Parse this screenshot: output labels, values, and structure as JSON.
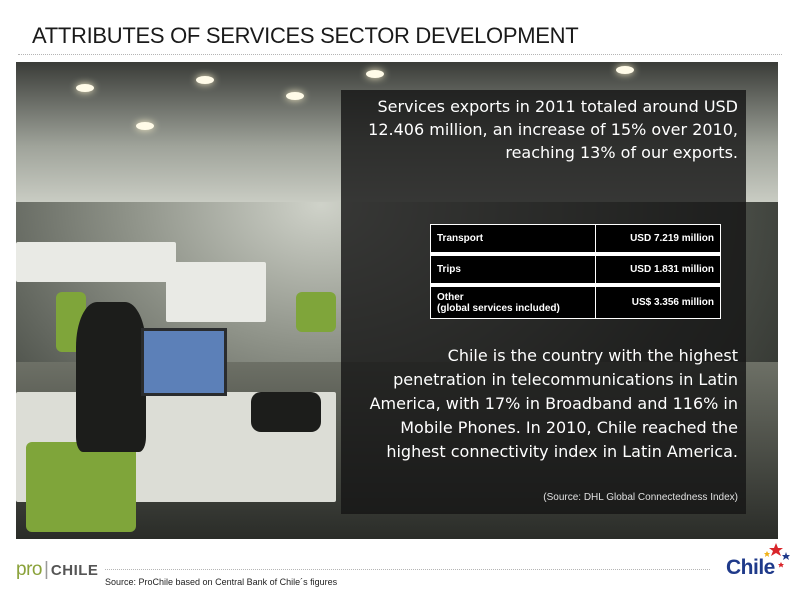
{
  "slide": {
    "title": "ATTRIBUTES OF SERVICES SECTOR DEVELOPMENT"
  },
  "panel": {
    "intro": "Services exports in 2011 totaled around USD 12.406 million, an increase of 15% over 2010, reaching 13% of our exports.",
    "table": {
      "rows": [
        {
          "label": "Transport",
          "label_line2": "",
          "value": "USD 7.219 million"
        },
        {
          "label": "Trips",
          "label_line2": "",
          "value": "USD 1.831 million"
        },
        {
          "label": "Other",
          "label_line2": "(global services included)",
          "value": "US$ 3.356 million"
        }
      ]
    },
    "telecom": "Chile is the country with the highest penetration in telecommunications in Latin America, with 17% in Broadband and 116% in Mobile Phones. In 2010, Chile reached the highest connectivity index in Latin America.",
    "source_note": "(Source: DHL Global Connectedness Index)"
  },
  "footer": {
    "logo_pro": "pro",
    "logo_chile": "CHILE",
    "source": "Source: ProChile based on Central Bank of Chile´s figures",
    "brand_logo": "Chile"
  },
  "colors": {
    "logo_green": "#8aa23a",
    "brand_blue": "#1f3a8a",
    "panel_bg": "#161616"
  }
}
